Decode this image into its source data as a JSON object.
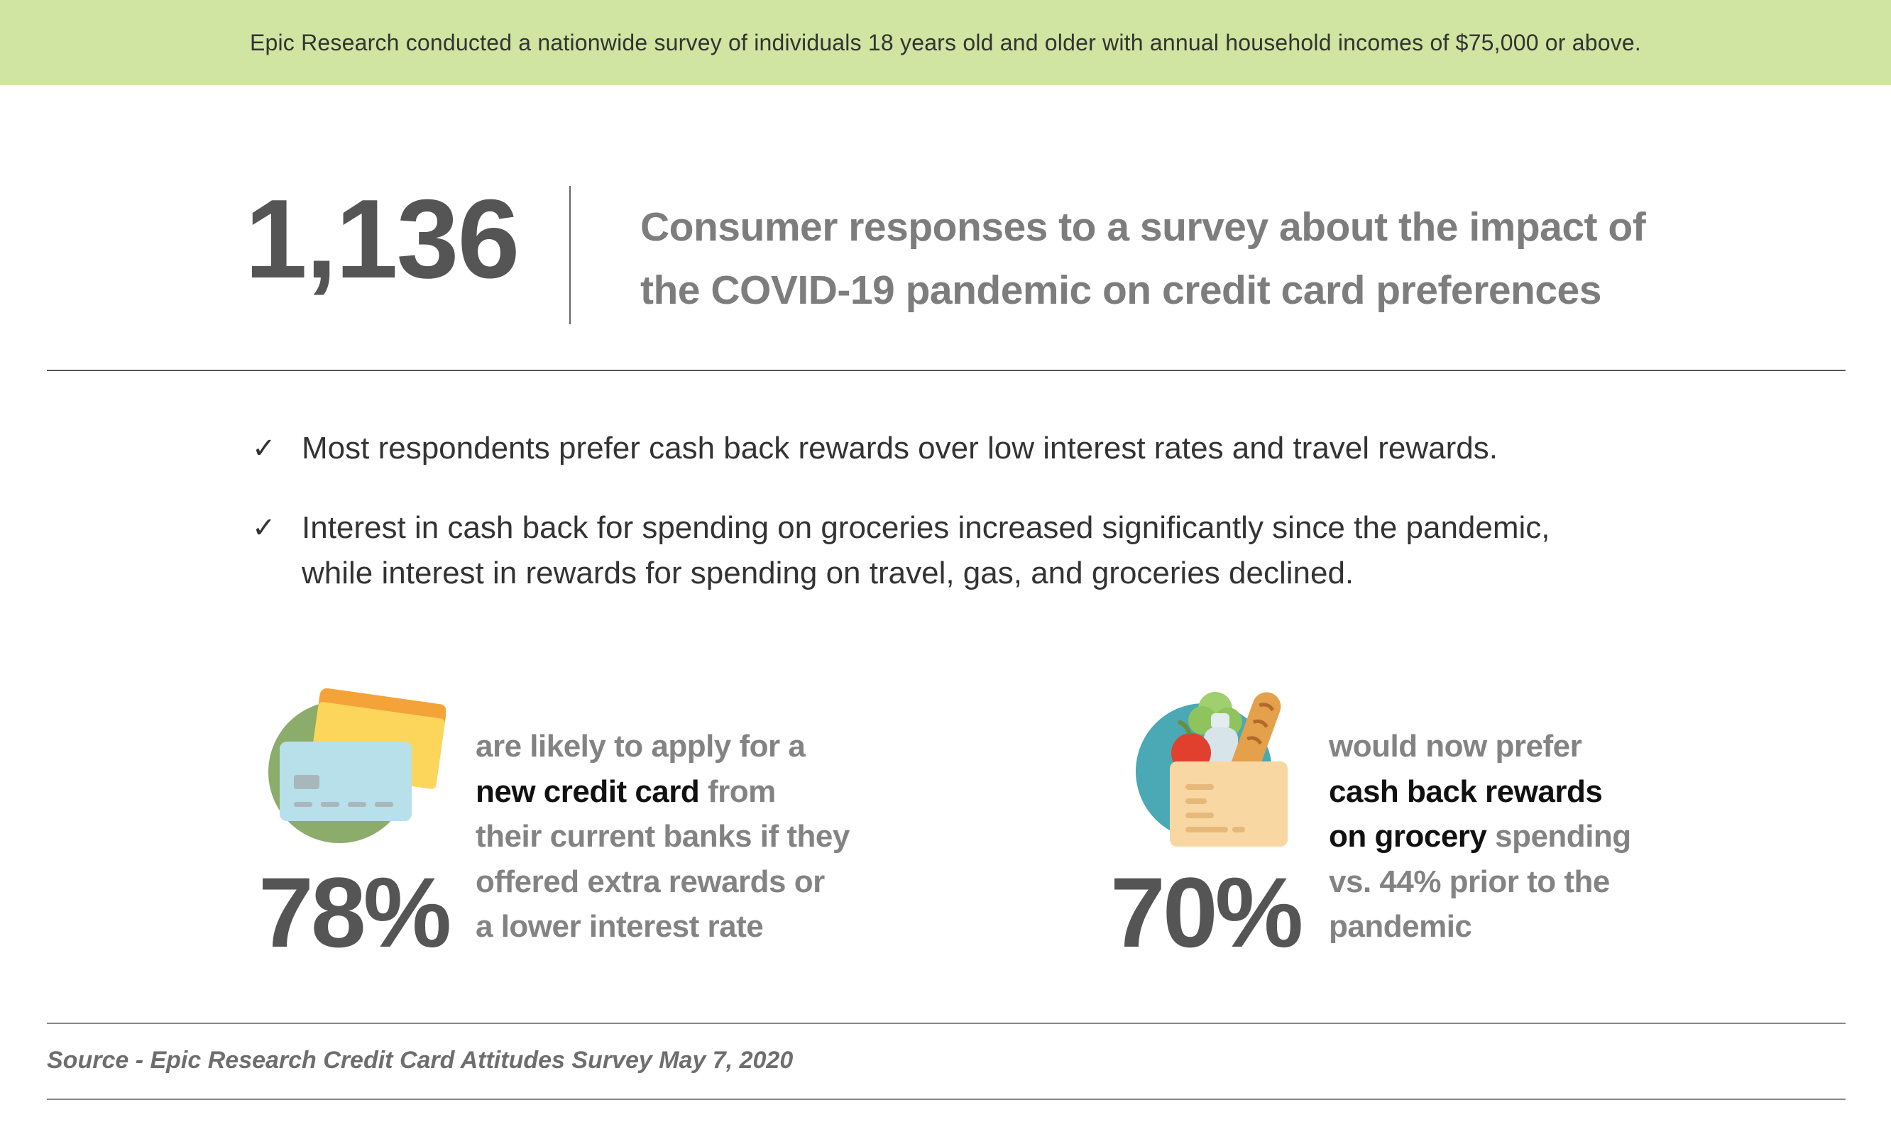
{
  "banner": {
    "text": "Epic Research conducted a nationwide survey of individuals 18 years old and older with annual household incomes of $75,000 or above."
  },
  "hero": {
    "count": "1,136",
    "headline_line1": "Consumer responses to a survey about the impact of",
    "headline_line2": "the COVID-19 pandemic on credit card preferences"
  },
  "bullets": [
    {
      "icon": "check-icon",
      "lines": [
        "Most respondents prefer cash back rewards over low interest rates and travel rewards."
      ]
    },
    {
      "icon": "check-icon",
      "lines": [
        "Interest in cash back for spending on groceries increased significantly since the pandemic,",
        "while interest in rewards for spending on travel, gas, and groceries declined."
      ]
    }
  ],
  "stats": [
    {
      "icon": "credit-cards-icon",
      "percent": "78%",
      "line1": "are likely to apply for a",
      "line2_highlight": "new credit card",
      "line2_rest": " from",
      "line3": "their current banks if they",
      "line4": "offered extra rewards or",
      "line5": "a lower interest rate"
    },
    {
      "icon": "grocery-bag-icon",
      "percent": "70%",
      "line1": "would now prefer",
      "line2_highlight": "cash back rewards",
      "line3_highlight": "on grocery",
      "line3_rest": " spending",
      "line4": "vs. 44% prior to the",
      "line5": "pandemic"
    }
  ],
  "source": {
    "text": "Source - Epic Research Credit Card Attitudes Survey May 7, 2020"
  },
  "colors": {
    "banner_bg": "#cfe5a1",
    "hero_number": "#555555",
    "headline": "#7d7d7d",
    "highlight": "#111111"
  }
}
